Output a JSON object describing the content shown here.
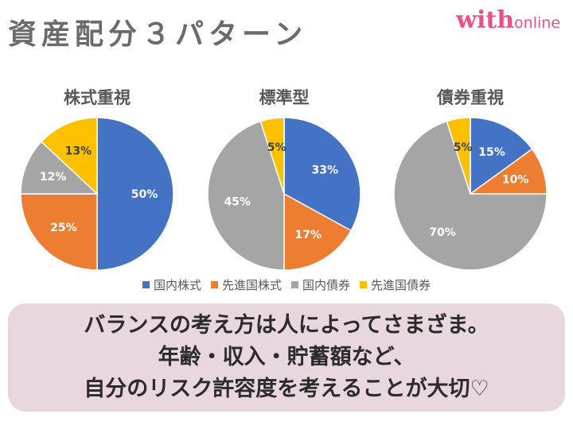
{
  "header": {
    "title": "資産配分３パターン",
    "logo_main": "with",
    "logo_sub": "online"
  },
  "chart_data": [
    {
      "type": "pie",
      "title": "株式重視",
      "categories": [
        "国内株式",
        "先進国株式",
        "国内債券",
        "先進国債券"
      ],
      "values": [
        50,
        25,
        12,
        13
      ],
      "labels": [
        "50%",
        "25%",
        "12%",
        "13%"
      ]
    },
    {
      "type": "pie",
      "title": "標準型",
      "categories": [
        "国内株式",
        "先進国株式",
        "国内債券",
        "先進国債券"
      ],
      "values": [
        33,
        17,
        45,
        5
      ],
      "labels": [
        "33%",
        "17%",
        "45%",
        "5%"
      ]
    },
    {
      "type": "pie",
      "title": "債券重視",
      "categories": [
        "国内株式",
        "先進国株式",
        "国内債券",
        "先進国債券"
      ],
      "values": [
        15,
        10,
        70,
        5
      ],
      "labels": [
        "15%",
        "10%",
        "70%",
        "5%"
      ]
    }
  ],
  "legend": {
    "items": [
      {
        "label": "国内株式",
        "color": "#4472c4"
      },
      {
        "label": "先進国株式",
        "color": "#ed7d31"
      },
      {
        "label": "国内債券",
        "color": "#a5a5a5"
      },
      {
        "label": "先進国債券",
        "color": "#ffc000"
      }
    ]
  },
  "message": {
    "lines": [
      "バランスの考え方は人によってさまざま。",
      "年齢・収入・貯蓄額など、",
      "自分のリスク許容度を考えることが大切♡"
    ]
  }
}
